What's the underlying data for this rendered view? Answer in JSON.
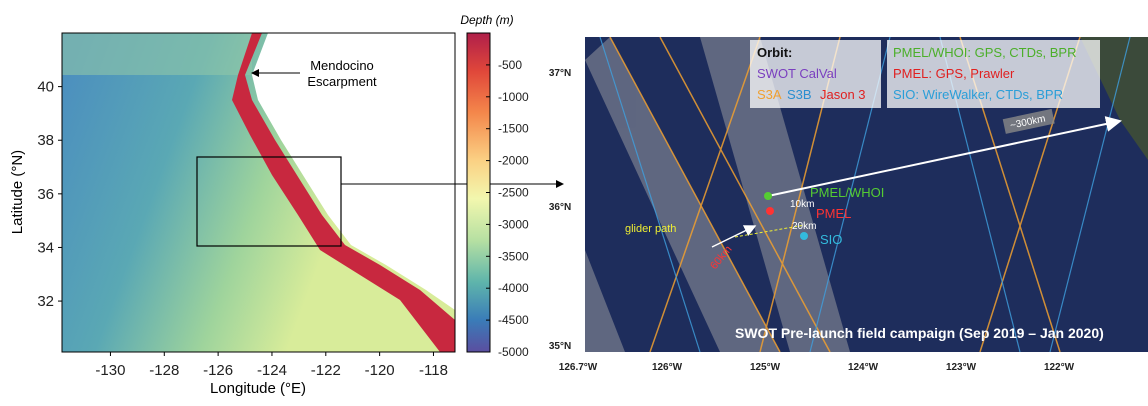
{
  "left_map": {
    "annotation": [
      "Mendocino",
      "Escarpment"
    ],
    "x_label": "Longitude (°E)",
    "y_label": "Latitude (°N)",
    "xlim": [
      -131.8,
      -117.2
    ],
    "xticks": [
      -130,
      -128,
      -126,
      -124,
      -122,
      -120,
      -118
    ],
    "ylim": [
      30.1,
      42.0
    ],
    "yticks": [
      32,
      34,
      36,
      38,
      40
    ],
    "colorbar": {
      "label": "Depth (m)",
      "lim": [
        -5000,
        0
      ],
      "ticks": [
        -500,
        -1000,
        -1500,
        -2000,
        -2500,
        -3000,
        -3500,
        -4000,
        -4500,
        -5000
      ]
    }
  },
  "right_map": {
    "lat_labels": [
      "37°N",
      "36°N",
      "35°N"
    ],
    "lon_labels": [
      "126.7°W",
      "126°W",
      "125°W",
      "124°W",
      "123°W",
      "122°W"
    ],
    "orbit_legend": {
      "title": "Orbit:",
      "swot": "SWOT CalVal",
      "s3a": "S3A",
      "s3b": "S3B",
      "jason": "Jason 3"
    },
    "instrument_legend": [
      "PMEL/WHOI: GPS, CTDs, BPR",
      "PMEL: GPS, Prawler",
      "SIO: WireWalker, CTDs, BPR"
    ],
    "labels": {
      "glider": "glider path",
      "pmel_whoi": "PMEL/WHOI",
      "d10": "10km",
      "pmel": "PMEL",
      "d20": "20km",
      "sio": "SIO",
      "d60": "60km",
      "d300": "~300km"
    },
    "caption": "SWOT Pre-launch field campaign (Sep 2019 – Jan 2020)"
  }
}
